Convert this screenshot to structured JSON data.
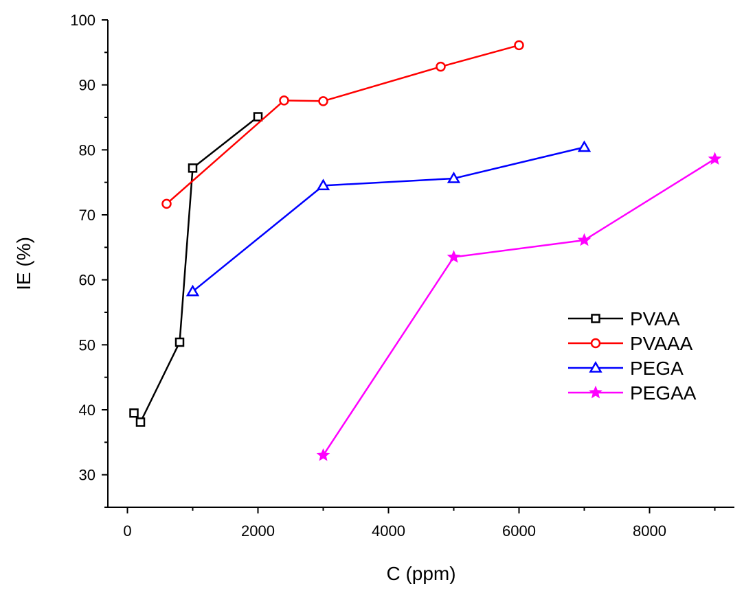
{
  "chart_data": {
    "type": "line",
    "title": "",
    "xlabel": "C (ppm)",
    "ylabel": "IE (%)",
    "xlim": [
      -300,
      9300
    ],
    "ylim": [
      25,
      100
    ],
    "xticks": [
      0,
      2000,
      4000,
      6000,
      8000
    ],
    "xtick_labels": [
      "0",
      "2000",
      "4000",
      "6000",
      "8000"
    ],
    "yticks": [
      30,
      40,
      50,
      60,
      70,
      80,
      90,
      100
    ],
    "ytick_labels": [
      "30",
      "40",
      "50",
      "60",
      "70",
      "80",
      "90",
      "100"
    ],
    "grid": false,
    "legend_position": "right-middle",
    "series": [
      {
        "name": "PVAA",
        "color": "#000000",
        "marker": "square",
        "x": [
          100,
          200,
          800,
          1000,
          2000
        ],
        "y": [
          39.5,
          38.1,
          50.4,
          77.2,
          85.1
        ]
      },
      {
        "name": "PVAAA",
        "color": "#ff0000",
        "marker": "circle",
        "x": [
          600,
          2400,
          3000,
          4800,
          6000
        ],
        "y": [
          71.7,
          87.6,
          87.5,
          92.8,
          96.1
        ]
      },
      {
        "name": "PEGA",
        "color": "#0000ff",
        "marker": "triangle",
        "x": [
          1000,
          3000,
          5000,
          7000
        ],
        "y": [
          58.2,
          74.5,
          75.6,
          80.4
        ]
      },
      {
        "name": "PEGAA",
        "color": "#ff00ff",
        "marker": "star",
        "x": [
          3000,
          5000,
          7000,
          9000
        ],
        "y": [
          33.0,
          63.5,
          66.1,
          78.6
        ]
      }
    ]
  }
}
